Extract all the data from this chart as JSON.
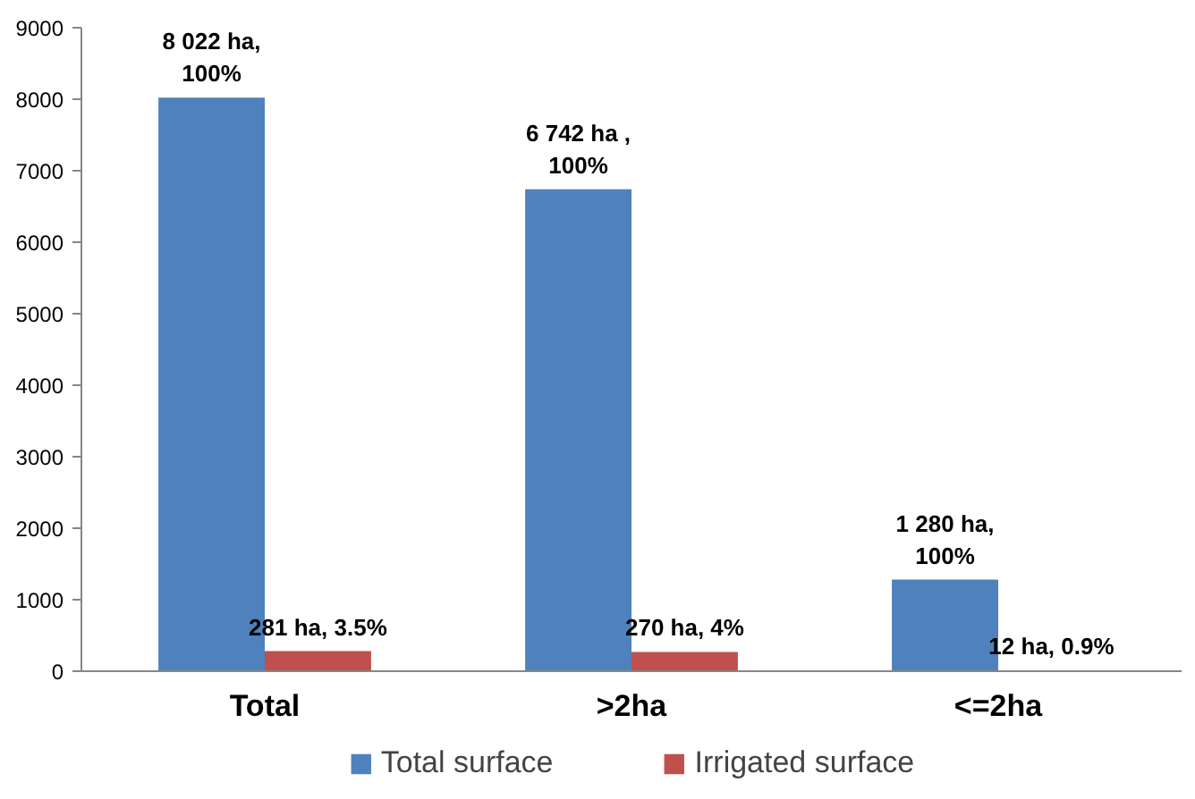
{
  "chart_data": {
    "type": "bar",
    "categories": [
      "Total",
      ">2ha",
      "<=2ha"
    ],
    "series": [
      {
        "name": "Total surface",
        "color": "#4f81bd",
        "values": [
          8022,
          6742,
          1280
        ],
        "value_labels": [
          "8 022 ha,\n100%",
          "6 742 ha ,\n100%",
          "1 280 ha,\n100%"
        ]
      },
      {
        "name": "Irrigated surface",
        "color": "#c0504d",
        "values": [
          281,
          270,
          12
        ],
        "value_labels": [
          "281 ha, 3.5%",
          "270 ha, 4%",
          "12 ha, 0.9%"
        ]
      }
    ],
    "ylim": [
      0,
      9000
    ],
    "yticks": [
      0,
      1000,
      2000,
      3000,
      4000,
      5000,
      6000,
      7000,
      8000,
      9000
    ],
    "grid": false,
    "legend": "bottom"
  }
}
